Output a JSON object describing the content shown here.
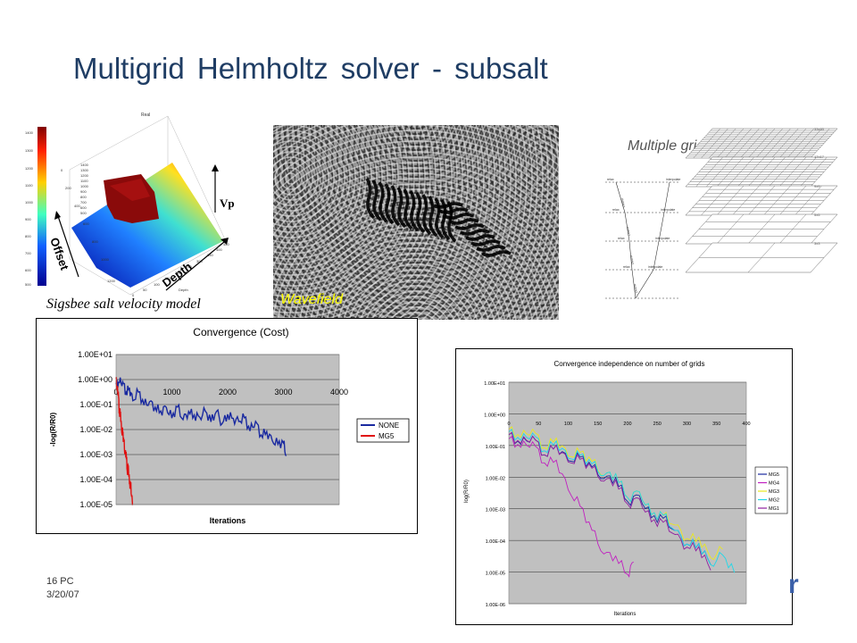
{
  "slide": {
    "title": "Multigrid Helmholtz solver - subsalt",
    "footer_page": "16 PC",
    "footer_date": "3/20/07",
    "corner_logo_fragment": "r"
  },
  "velocity_model": {
    "caption": "Sigsbee salt velocity model",
    "plot_title": "Real",
    "axis_vp": "Vp",
    "axis_offset": "Offset",
    "axis_depth": "Depth",
    "axis_small_depth": "Depth",
    "colorbar_ticks": [
      "1400",
      "1300",
      "1200",
      "1100",
      "1000",
      "900",
      "800",
      "700",
      "600",
      "500"
    ],
    "offset_ticks": [
      "0",
      "200",
      "400",
      "600",
      "800",
      "1000",
      "1200"
    ],
    "depth_ticks": [
      "0",
      "50",
      "100",
      "150",
      "200",
      "250",
      "300",
      "350",
      "400",
      "450"
    ],
    "z_ticks": [
      "1400",
      "1300",
      "1200",
      "1100",
      "1000",
      "900",
      "800",
      "700",
      "600",
      "500"
    ]
  },
  "wavefield": {
    "label": "Wavefield"
  },
  "grids": {
    "label": "Multiple grids",
    "level_labels": [
      "33x33",
      "17x17",
      "9x9",
      "5x5",
      "3x3"
    ],
    "left_labels": [
      "relax",
      "relax",
      "relax",
      "relax"
    ],
    "right_labels": [
      "interpolate",
      "interpolate",
      "interpolate",
      "interpolate"
    ],
    "mid_labels": [
      "restrict",
      "restrict",
      "restrict",
      "restrict"
    ]
  },
  "chart_data": [
    {
      "type": "line",
      "title": "Convergence (Cost)",
      "xlabel": "Iterations",
      "ylabel": "-log(R/R0)",
      "xlim": [
        0,
        4000
      ],
      "x_ticks": [
        "0",
        "1000",
        "2000",
        "3000",
        "4000"
      ],
      "y_ticks": [
        "1.00E+01",
        "1.00E+00",
        "1.00E-01",
        "1.00E-02",
        "1.00E-03",
        "1.00E-04",
        "1.00E-05"
      ],
      "y_scale": "log",
      "ylim": [
        1e-05,
        10
      ],
      "legend_position": "right",
      "series": [
        {
          "name": "NONE",
          "color": "#1a2aa0",
          "x": [
            0,
            60,
            120,
            180,
            240,
            300,
            400,
            500,
            600,
            700,
            800,
            900,
            1000,
            1100,
            1200,
            1300,
            1400,
            1500,
            1600,
            1700,
            1800,
            1900,
            2000,
            2100,
            2200,
            2300,
            2400,
            2500,
            2600,
            2700,
            2800,
            2900,
            3000,
            3050
          ],
          "y": [
            1.0,
            0.6,
            0.8,
            0.4,
            0.3,
            0.25,
            0.18,
            0.15,
            0.1,
            0.08,
            0.07,
            0.05,
            0.05,
            0.045,
            0.04,
            0.04,
            0.04,
            0.038,
            0.036,
            0.035,
            0.03,
            0.028,
            0.03,
            0.03,
            0.025,
            0.02,
            0.015,
            0.012,
            0.01,
            0.006,
            0.004,
            0.003,
            0.002,
            0.0015
          ]
        },
        {
          "name": "MG5",
          "color": "#e01010",
          "x": [
            0,
            20,
            40,
            60,
            80,
            100,
            120,
            140,
            160,
            180,
            200,
            220,
            240,
            260,
            280,
            300
          ],
          "y": [
            1.0,
            0.5,
            0.2,
            0.08,
            0.03,
            0.012,
            0.006,
            0.003,
            0.0015,
            0.0008,
            0.0004,
            0.0002,
            0.0001,
            5e-05,
            2e-05,
            1e-05
          ]
        }
      ]
    },
    {
      "type": "line",
      "title": "Convergence independence on number of grids",
      "xlabel": "Iterations",
      "ylabel": "log(R/R0)",
      "xlim": [
        0,
        400
      ],
      "x_ticks": [
        "0",
        "50",
        "100",
        "150",
        "200",
        "250",
        "300",
        "350",
        "400"
      ],
      "y_ticks": [
        "1.00E+01",
        "1.00E+00",
        "1.00E-01",
        "1.00E-02",
        "1.00E-03",
        "1.00E-04",
        "1.00E-05",
        "1.00E-06"
      ],
      "y_scale": "log",
      "ylim": [
        1e-06,
        10
      ],
      "legend_position": "right",
      "series": [
        {
          "name": "MG5",
          "color": "#1a2aa0",
          "x": [
            0,
            20,
            40,
            60,
            80,
            100,
            120,
            140,
            160,
            180,
            200,
            220,
            240,
            260,
            280,
            300,
            320,
            340
          ],
          "y": [
            0.2,
            0.15,
            0.12,
            0.09,
            0.06,
            0.05,
            0.035,
            0.02,
            0.012,
            0.006,
            0.003,
            0.0015,
            0.0008,
            0.0004,
            0.0002,
            0.0001,
            5e-05,
            3e-05
          ]
        },
        {
          "name": "MG4",
          "color": "#c020c0",
          "x": [
            0,
            20,
            40,
            60,
            80,
            100,
            120,
            140,
            160,
            180,
            200,
            210
          ],
          "y": [
            0.15,
            0.12,
            0.08,
            0.05,
            0.02,
            0.006,
            0.001,
            0.0002,
            5e-05,
            2e-05,
            1.5e-05,
            1.2e-05
          ]
        },
        {
          "name": "MG3",
          "color": "#e8e820",
          "x": [
            0,
            20,
            40,
            60,
            80,
            100,
            120,
            140,
            160,
            180,
            200,
            220,
            240,
            260,
            280,
            300,
            320,
            340,
            360
          ],
          "y": [
            0.3,
            0.25,
            0.2,
            0.15,
            0.1,
            0.07,
            0.05,
            0.03,
            0.015,
            0.008,
            0.004,
            0.002,
            0.001,
            0.0005,
            0.0003,
            0.00015,
            8e-05,
            5e-05,
            3e-05
          ]
        },
        {
          "name": "MG2",
          "color": "#20d8e8",
          "x": [
            0,
            20,
            40,
            60,
            80,
            100,
            120,
            140,
            160,
            180,
            200,
            220,
            240,
            260,
            280,
            300,
            320,
            340,
            360,
            380
          ],
          "y": [
            0.25,
            0.2,
            0.15,
            0.12,
            0.08,
            0.06,
            0.04,
            0.025,
            0.015,
            0.008,
            0.004,
            0.002,
            0.001,
            0.0005,
            0.0002,
            0.0001,
            5e-05,
            3e-05,
            2e-05,
            1.5e-05
          ]
        },
        {
          "name": "MG1",
          "color": "#9020a0",
          "x": [
            0,
            20,
            40,
            60,
            80,
            100,
            120,
            140,
            160,
            180,
            200,
            220,
            240,
            260,
            280,
            300,
            320,
            340
          ],
          "y": [
            0.2,
            0.16,
            0.12,
            0.09,
            0.06,
            0.045,
            0.03,
            0.018,
            0.01,
            0.005,
            0.0025,
            0.0012,
            0.0006,
            0.0003,
            0.00015,
            8e-05,
            4e-05,
            2e-05
          ]
        }
      ]
    }
  ]
}
